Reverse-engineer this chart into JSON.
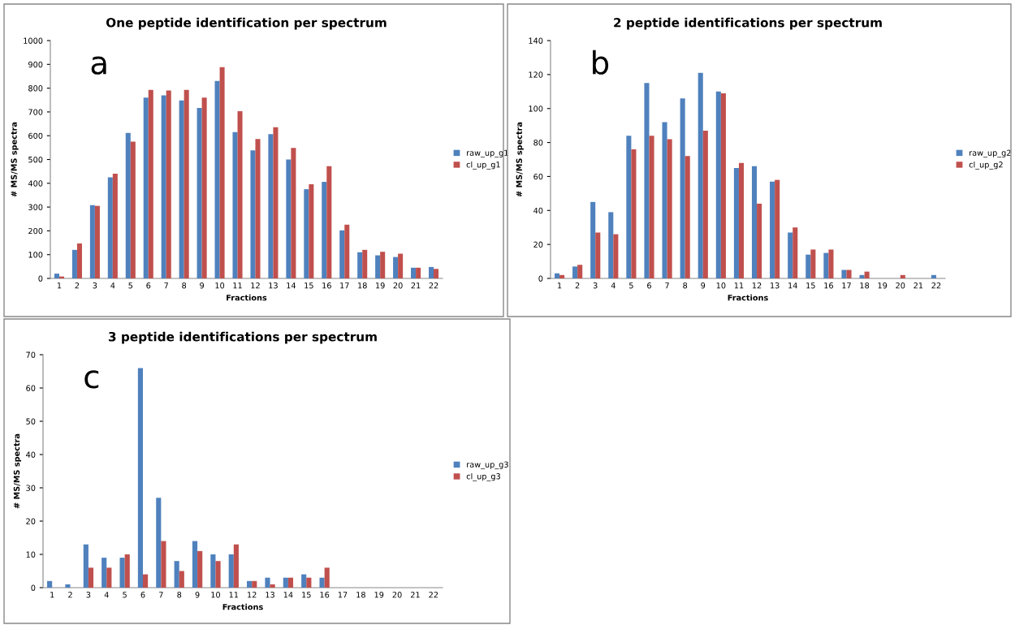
{
  "chart_data": [
    {
      "type": "bar",
      "title": "One peptide identification per spectrum",
      "xlabel": "Fractions",
      "ylabel": "# MS/MS spectra",
      "annotations": [
        "a"
      ],
      "categories": [
        "1",
        "2",
        "3",
        "4",
        "5",
        "6",
        "7",
        "8",
        "9",
        "10",
        "11",
        "12",
        "13",
        "14",
        "15",
        "16",
        "17",
        "18",
        "19",
        "20",
        "21",
        "22"
      ],
      "series": [
        {
          "name": "raw_up_g1",
          "color": "#4f81bd",
          "values": [
            20,
            120,
            308,
            425,
            612,
            760,
            770,
            748,
            717,
            830,
            615,
            538,
            607,
            500,
            375,
            406,
            202,
            110,
            97,
            90,
            45,
            48
          ]
        },
        {
          "name": "cl_up_g1",
          "color": "#c0504d",
          "values": [
            8,
            147,
            305,
            440,
            575,
            793,
            790,
            793,
            760,
            888,
            703,
            586,
            636,
            549,
            396,
            472,
            226,
            120,
            112,
            104,
            45,
            40
          ]
        }
      ],
      "ylim": [
        0,
        1000
      ],
      "yticks": [
        0,
        100,
        200,
        300,
        400,
        500,
        600,
        700,
        800,
        900,
        1000
      ],
      "grid": false,
      "legend": "right"
    },
    {
      "type": "bar",
      "title": "2 peptide identifications per spectrum",
      "xlabel": "Fractions",
      "ylabel": "# MS/MS spectra",
      "annotations": [
        "b"
      ],
      "categories": [
        "1",
        "2",
        "3",
        "4",
        "5",
        "6",
        "7",
        "8",
        "9",
        "10",
        "11",
        "12",
        "13",
        "14",
        "15",
        "16",
        "17",
        "18",
        "19",
        "20",
        "21",
        "22"
      ],
      "series": [
        {
          "name": "raw_up_g2",
          "color": "#4f81bd",
          "values": [
            3,
            7,
            45,
            39,
            84,
            115,
            92,
            106,
            121,
            110,
            65,
            66,
            57,
            27,
            14,
            15,
            5,
            2,
            0,
            0,
            0,
            2
          ]
        },
        {
          "name": "cl_up_g2",
          "color": "#c0504d",
          "values": [
            2,
            8,
            27,
            26,
            76,
            84,
            82,
            72,
            87,
            109,
            68,
            44,
            58,
            30,
            17,
            17,
            5,
            4,
            0,
            2,
            0,
            0
          ]
        }
      ],
      "ylim": [
        0,
        140
      ],
      "yticks": [
        0,
        20,
        40,
        60,
        80,
        100,
        120,
        140
      ],
      "grid": false,
      "legend": "right"
    },
    {
      "type": "bar",
      "title": "3 peptide identifications per spectrum",
      "xlabel": "Fractions",
      "ylabel": "# MS/MS spectra",
      "annotations": [
        "c"
      ],
      "categories": [
        "1",
        "2",
        "3",
        "4",
        "5",
        "6",
        "7",
        "8",
        "9",
        "10",
        "11",
        "12",
        "13",
        "14",
        "15",
        "16",
        "17",
        "18",
        "19",
        "20",
        "21",
        "22"
      ],
      "series": [
        {
          "name": "raw_up_g3",
          "color": "#4f81bd",
          "values": [
            2,
            1,
            13,
            9,
            9,
            66,
            27,
            8,
            14,
            10,
            10,
            2,
            3,
            3,
            4,
            3,
            0,
            0,
            0,
            0,
            0,
            0
          ]
        },
        {
          "name": "cl_up_g3",
          "color": "#c0504d",
          "values": [
            0,
            0,
            6,
            6,
            10,
            4,
            14,
            5,
            11,
            8,
            13,
            2,
            1,
            3,
            3,
            6,
            0,
            0,
            0,
            0,
            0,
            0
          ]
        }
      ],
      "ylim": [
        0,
        70
      ],
      "yticks": [
        0,
        10,
        20,
        30,
        40,
        50,
        60,
        70
      ],
      "grid": false,
      "legend": "right"
    }
  ]
}
